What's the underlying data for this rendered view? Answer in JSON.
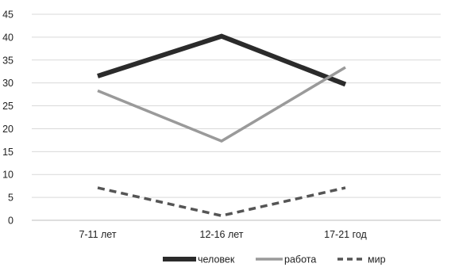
{
  "chart_data": {
    "type": "line",
    "categories": [
      "7-11 лет",
      "12-16 лет",
      "17-21 год"
    ],
    "series": [
      {
        "name": "человек",
        "values": [
          31.5,
          40.2,
          29.7
        ],
        "color": "#2b2b2b",
        "style": "solid"
      },
      {
        "name": "работа",
        "values": [
          28.3,
          17.3,
          33.4
        ],
        "color": "#9a9a9a",
        "style": "solid"
      },
      {
        "name": "мир",
        "values": [
          7.1,
          1.0,
          7.1
        ],
        "color": "#555555",
        "style": "dashed"
      }
    ],
    "ylim": [
      0,
      45
    ],
    "yticks": [
      0,
      5,
      10,
      15,
      20,
      25,
      30,
      35,
      40,
      45
    ],
    "grid": true,
    "legend_position": "bottom"
  }
}
